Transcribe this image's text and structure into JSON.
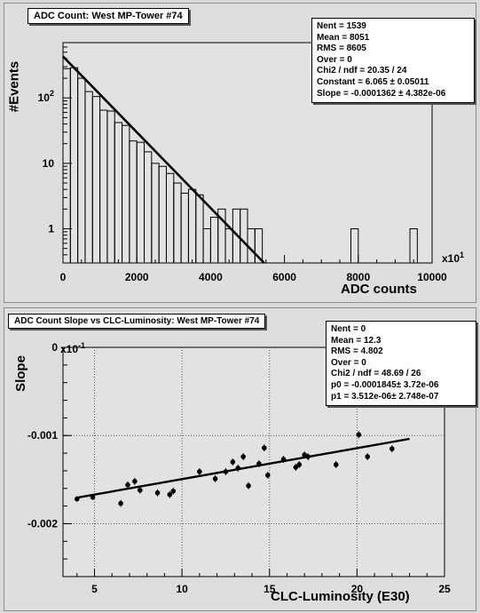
{
  "chart_data": [
    {
      "type": "bar",
      "title": "ADC Count: West MP-Tower #74",
      "xlabel": "ADC counts",
      "ylabel": "#Events",
      "x_multiplier": "x10",
      "x_multiplier_exp": "1",
      "xlim": [
        0,
        10000
      ],
      "ylim": [
        0.3,
        700
      ],
      "y_scale": "log",
      "x_ticks": [
        "0",
        "2000",
        "4000",
        "6000",
        "8000",
        "10000"
      ],
      "y_ticks": [
        {
          "value": 1,
          "base": "1",
          "exp": ""
        },
        {
          "value": 10,
          "base": "10",
          "exp": ""
        },
        {
          "value": 100,
          "base": "10",
          "exp": "2"
        }
      ],
      "histogram": {
        "bin_width": 200,
        "bin_starts": [
          0,
          200,
          400,
          600,
          800,
          1000,
          1200,
          1400,
          1600,
          1800,
          2000,
          2200,
          2400,
          2600,
          2800,
          3000,
          3200,
          3400,
          3600,
          3800,
          4000,
          4200,
          4400,
          4600,
          4800,
          5000,
          5200,
          5400,
          7800,
          9400
        ],
        "counts": [
          280,
          290,
          200,
          125,
          105,
          65,
          63,
          42,
          38,
          22,
          21,
          15,
          10,
          9,
          7,
          5,
          3.5,
          4,
          3.3,
          1,
          1.5,
          2,
          1,
          2,
          2,
          1,
          1,
          0,
          1,
          1
        ]
      },
      "fit": {
        "type": "line",
        "x": [
          0,
          5450
        ],
        "y": [
          431,
          0.27
        ]
      },
      "stats": {
        "Nent": "1539",
        "Mean": "8051",
        "RMS": "8605",
        "Over": "0",
        "Chi2 / ndf": "20.35 / 24",
        "Constant": "6.065 ± 0.05011",
        "Slope": "-0.0001362 ± 4.382e-06"
      },
      "grid": false
    },
    {
      "type": "scatter",
      "title": "ADC Count Slope vs CLC-Luminosity: West MP-Tower #74",
      "xlabel": "CLC-Luminosity (E30)",
      "ylabel": "Slope",
      "y_multiplier": "x10",
      "y_multiplier_exp": "-1",
      "xlim": [
        3.2,
        25
      ],
      "ylim": [
        -0.0026,
        0
      ],
      "x_ticks": [
        "5",
        "10",
        "15",
        "20",
        "25"
      ],
      "y_ticks": [
        {
          "value": 0,
          "label": "0"
        },
        {
          "value": -0.001,
          "label": "-0.001"
        },
        {
          "value": -0.002,
          "label": "-0.002"
        }
      ],
      "points": [
        {
          "x": 4.0,
          "y": -0.00172,
          "err": 3e-05
        },
        {
          "x": 4.9,
          "y": -0.0017,
          "err": 3e-05
        },
        {
          "x": 6.5,
          "y": -0.00177,
          "err": 4e-05
        },
        {
          "x": 6.9,
          "y": -0.00156,
          "err": 4e-05
        },
        {
          "x": 7.3,
          "y": -0.00152,
          "err": 4e-05
        },
        {
          "x": 7.6,
          "y": -0.00162,
          "err": 4e-05
        },
        {
          "x": 8.6,
          "y": -0.00165,
          "err": 4e-05
        },
        {
          "x": 9.3,
          "y": -0.00167,
          "err": 4e-05
        },
        {
          "x": 9.5,
          "y": -0.00163,
          "err": 4e-05
        },
        {
          "x": 11.0,
          "y": -0.00141,
          "err": 4e-05
        },
        {
          "x": 11.9,
          "y": -0.00149,
          "err": 4e-05
        },
        {
          "x": 12.5,
          "y": -0.00141,
          "err": 4e-05
        },
        {
          "x": 12.9,
          "y": -0.0013,
          "err": 4e-05
        },
        {
          "x": 13.2,
          "y": -0.00137,
          "err": 4e-05
        },
        {
          "x": 13.5,
          "y": -0.00124,
          "err": 4e-05
        },
        {
          "x": 13.8,
          "y": -0.00157,
          "err": 4e-05
        },
        {
          "x": 14.4,
          "y": -0.00132,
          "err": 4e-05
        },
        {
          "x": 14.7,
          "y": -0.00114,
          "err": 4e-05
        },
        {
          "x": 14.9,
          "y": -0.00145,
          "err": 4e-05
        },
        {
          "x": 15.8,
          "y": -0.00127,
          "err": 4e-05
        },
        {
          "x": 16.5,
          "y": -0.00136,
          "err": 4e-05
        },
        {
          "x": 16.7,
          "y": -0.00133,
          "err": 4e-05
        },
        {
          "x": 17.0,
          "y": -0.00122,
          "err": 4e-05
        },
        {
          "x": 17.2,
          "y": -0.00124,
          "err": 4e-05
        },
        {
          "x": 18.8,
          "y": -0.00133,
          "err": 4e-05
        },
        {
          "x": 20.1,
          "y": -0.00099,
          "err": 4e-05
        },
        {
          "x": 20.6,
          "y": -0.00124,
          "err": 4e-05
        },
        {
          "x": 22.0,
          "y": -0.00115,
          "err": 4e-05
        }
      ],
      "fit": {
        "type": "line",
        "x": [
          4.0,
          23.0
        ],
        "y": [
          -0.001705,
          -0.001038
        ]
      },
      "stats": {
        "Nent": "0",
        "Mean": "12.3",
        "RMS": "4.802",
        "Over": "0",
        "Chi2 / ndf": "48.69 / 26",
        "p0": "-0.0001845± 3.72e-06",
        "p1": "3.512e-06± 2.748e-07"
      },
      "grid": true
    }
  ],
  "top": {
    "title": "ADC Count: West MP-Tower #74",
    "ylabel": "#Events",
    "xlabel": "ADC counts",
    "stats_lines": [
      "Nent = 1539",
      "Mean  =  8051",
      "RMS   =  8605",
      "Over  =     0",
      "Chi2 / ndf = 20.35 / 24",
      "Constant = 6.065  ± 0.05011",
      "Slope    = -0.0001362  ± 4.382e-06"
    ]
  },
  "bottom": {
    "title": "ADC Count Slope vs CLC-Luminosity: West MP-Tower #74",
    "ylabel": "Slope",
    "xlabel": "CLC-Luminosity (E30)",
    "stats_lines": [
      "Nent = 0",
      "Mean  =  12.3",
      "RMS   =  4.802",
      "Over  =     0",
      "Chi2 / ndf = 48.69 / 26",
      "p0     = -0.0001845± 3.72e-06",
      "p1     = 3.512e-06± 2.748e-07"
    ]
  },
  "colors": {
    "background": "#dedede",
    "frame": "#000000",
    "grid": "#555555"
  }
}
